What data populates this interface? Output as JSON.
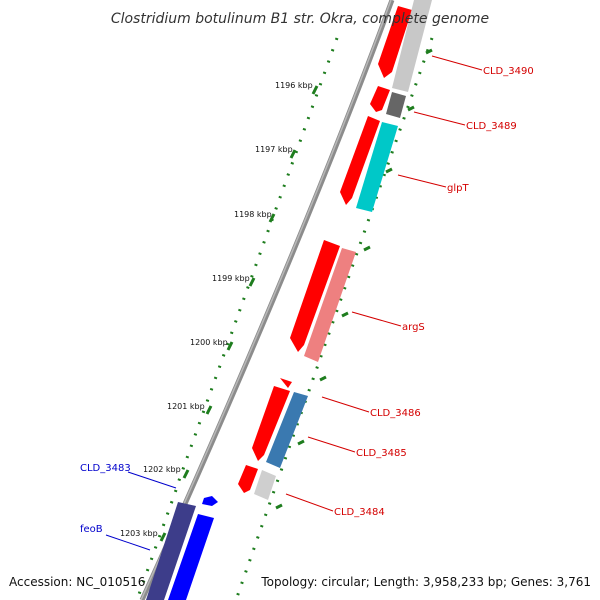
{
  "title": "Clostridium botulinum B1 str. Okra, complete genome",
  "accession": "Accession: NC_010516",
  "topology": "Topology: circular; Length: 3,958,233 bp; Genes: 3,761",
  "scale_labels": [
    "1196 kbp",
    "1197 kbp",
    "1198 kbp",
    "1199 kbp",
    "1200 kbp",
    "1201 kbp",
    "1202 kbp",
    "1203 kbp"
  ],
  "gene_labels": [
    {
      "text": "CLD_3490",
      "color": "#d40000"
    },
    {
      "text": "CLD_3489",
      "color": "#d40000"
    },
    {
      "text": "glpT",
      "color": "#d40000"
    },
    {
      "text": "argS",
      "color": "#d40000"
    },
    {
      "text": "CLD_3486",
      "color": "#d40000"
    },
    {
      "text": "CLD_3485",
      "color": "#d40000"
    },
    {
      "text": "CLD_3484",
      "color": "#d40000"
    },
    {
      "text": "CLD_3483",
      "color": "#0000cc"
    },
    {
      "text": "feoB",
      "color": "#0000cc"
    }
  ],
  "colors": {
    "reverse_strand_cds": "#ff0000",
    "forward_strand_cds": "#0000ff",
    "backbone": "#808080",
    "ticks": "#228b22"
  }
}
